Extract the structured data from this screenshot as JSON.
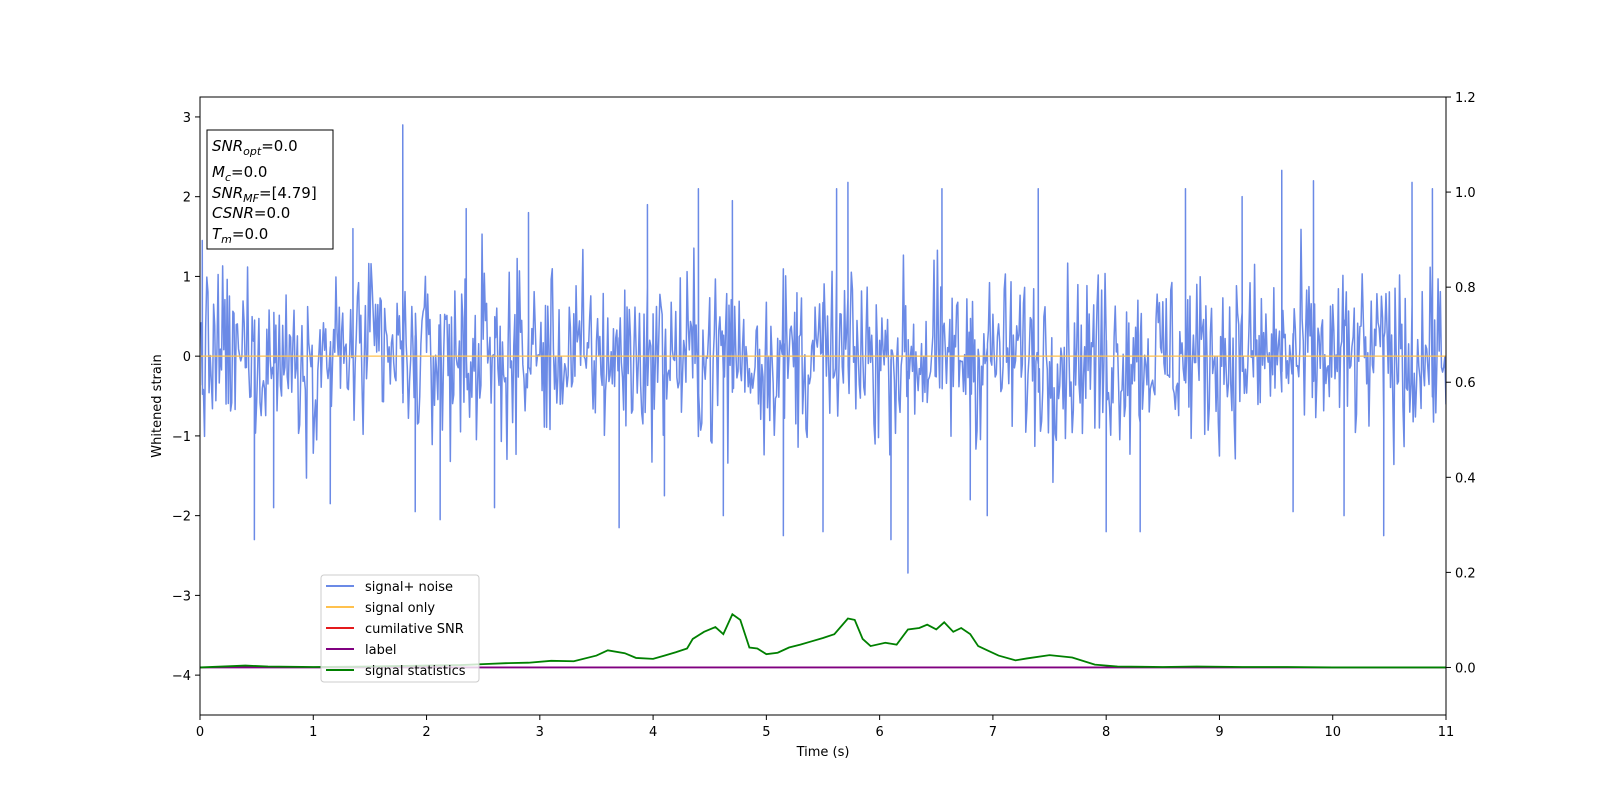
{
  "chart_data": {
    "type": "line",
    "xlabel": "Time (s)",
    "ylabel_left": "Whitened strain",
    "ylabel_right": "",
    "xlim": [
      0,
      11
    ],
    "ylim_left": [
      -4.5,
      3.25
    ],
    "ylim_right": [
      -0.1,
      1.2
    ],
    "x_ticks": [
      0,
      1,
      2,
      3,
      4,
      5,
      6,
      7,
      8,
      9,
      10,
      11
    ],
    "y_ticks_left": [
      -4,
      -3,
      -2,
      -1,
      0,
      1,
      2,
      3
    ],
    "y_ticks_right": [
      0.0,
      0.2,
      0.4,
      0.6,
      0.8,
      1.0,
      1.2
    ],
    "x_tick_labels": [
      "0",
      "1",
      "2",
      "3",
      "4",
      "5",
      "6",
      "7",
      "8",
      "9",
      "10",
      "11"
    ],
    "y_tick_labels_left": [
      "−4",
      "−3",
      "−2",
      "−1",
      "0",
      "1",
      "2",
      "3"
    ],
    "y_tick_labels_right": [
      "0.0",
      "0.2",
      "0.4",
      "0.6",
      "0.8",
      "1.0",
      "1.2"
    ],
    "grid": false,
    "legend_position": "lower-left",
    "info_box": [
      {
        "label": "SNR",
        "sub": "opt",
        "value": "=0.0"
      },
      {
        "label": "M",
        "sub": "c",
        "value": "=0.0"
      },
      {
        "label": "SNR",
        "sub": "MF",
        "value": "=[4.79]"
      },
      {
        "label": "CSNR",
        "sub": "",
        "value": "=0.0"
      },
      {
        "label": "T",
        "sub": "m",
        "value": "=0.0"
      }
    ],
    "series": [
      {
        "name": "signal+ noise",
        "axis": "left",
        "color": "#6b8ae6",
        "kind": "noise",
        "typical_range": [
          -1.2,
          1.2
        ],
        "peaks": [
          [
            0.02,
            1.45
          ],
          [
            0.48,
            -2.3
          ],
          [
            0.65,
            -1.9
          ],
          [
            1.15,
            -1.85
          ],
          [
            1.35,
            1.6
          ],
          [
            1.79,
            2.9
          ],
          [
            1.9,
            -1.95
          ],
          [
            2.12,
            -2.05
          ],
          [
            2.35,
            1.85
          ],
          [
            2.6,
            -1.9
          ],
          [
            2.9,
            1.8
          ],
          [
            3.7,
            -2.15
          ],
          [
            3.95,
            1.9
          ],
          [
            4.1,
            -1.75
          ],
          [
            4.4,
            2.1
          ],
          [
            4.62,
            -2.0
          ],
          [
            4.7,
            1.95
          ],
          [
            5.15,
            -2.25
          ],
          [
            5.5,
            -2.2
          ],
          [
            5.62,
            2.1
          ],
          [
            5.72,
            2.18
          ],
          [
            6.1,
            -2.3
          ],
          [
            6.25,
            -2.72
          ],
          [
            6.55,
            2.1
          ],
          [
            6.8,
            -1.8
          ],
          [
            6.95,
            -2.0
          ],
          [
            7.4,
            2.1
          ],
          [
            8.0,
            -2.2
          ],
          [
            8.3,
            -2.2
          ],
          [
            8.7,
            2.1
          ],
          [
            9.2,
            2.0
          ],
          [
            9.55,
            2.33
          ],
          [
            9.65,
            -1.95
          ],
          [
            9.83,
            2.2
          ],
          [
            10.1,
            -2.0
          ],
          [
            10.45,
            -2.25
          ],
          [
            10.7,
            2.18
          ],
          [
            10.88,
            2.1
          ]
        ]
      },
      {
        "name": "signal only",
        "axis": "left",
        "color": "#ffc14d",
        "x": [
          0,
          11
        ],
        "y": [
          0,
          0
        ]
      },
      {
        "name": "cumilative SNR",
        "axis": "left",
        "color": "#e41a1c",
        "x": [],
        "y": []
      },
      {
        "name": "label",
        "axis": "right",
        "color": "#800080",
        "x": [
          0,
          11
        ],
        "y": [
          0,
          0
        ]
      },
      {
        "name": "signal statistics",
        "axis": "right",
        "color": "#008000",
        "x": [
          0,
          0.3,
          0.4,
          0.6,
          1.0,
          1.5,
          2.0,
          2.3,
          2.5,
          2.7,
          2.9,
          3.1,
          3.3,
          3.5,
          3.6,
          3.75,
          3.85,
          4.0,
          4.1,
          4.2,
          4.3,
          4.35,
          4.45,
          4.55,
          4.62,
          4.7,
          4.77,
          4.85,
          4.92,
          5.0,
          5.1,
          5.2,
          5.3,
          5.4,
          5.5,
          5.6,
          5.72,
          5.78,
          5.85,
          5.92,
          6.05,
          6.15,
          6.25,
          6.35,
          6.42,
          6.5,
          6.57,
          6.65,
          6.72,
          6.8,
          6.87,
          6.95,
          7.05,
          7.2,
          7.3,
          7.5,
          7.7,
          7.9,
          8.1,
          8.5,
          8.8,
          9.2,
          9.6,
          10.0,
          10.5,
          11.0
        ],
        "y": [
          0.0,
          0.003,
          0.004,
          0.002,
          0.001,
          0.002,
          0.004,
          0.005,
          0.007,
          0.009,
          0.01,
          0.014,
          0.013,
          0.025,
          0.036,
          0.03,
          0.02,
          0.018,
          0.025,
          0.032,
          0.04,
          0.06,
          0.075,
          0.085,
          0.07,
          0.112,
          0.1,
          0.042,
          0.04,
          0.028,
          0.031,
          0.042,
          0.048,
          0.055,
          0.062,
          0.07,
          0.103,
          0.1,
          0.06,
          0.045,
          0.052,
          0.048,
          0.08,
          0.083,
          0.09,
          0.08,
          0.095,
          0.075,
          0.083,
          0.07,
          0.045,
          0.036,
          0.025,
          0.015,
          0.019,
          0.026,
          0.021,
          0.006,
          0.002,
          0.001,
          0.002,
          0.001,
          0.001,
          0.0,
          0.0,
          0.0
        ]
      }
    ]
  }
}
